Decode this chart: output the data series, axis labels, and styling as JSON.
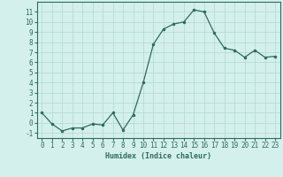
{
  "x": [
    0,
    1,
    2,
    3,
    4,
    5,
    6,
    7,
    8,
    9,
    10,
    11,
    12,
    13,
    14,
    15,
    16,
    17,
    18,
    19,
    20,
    21,
    22,
    23
  ],
  "y": [
    1,
    -0.1,
    -0.8,
    -0.5,
    -0.5,
    -0.1,
    -0.2,
    1.0,
    -0.7,
    0.8,
    4.0,
    7.8,
    9.3,
    9.8,
    10.0,
    11.2,
    11.0,
    8.9,
    7.4,
    7.2,
    6.5,
    7.2,
    6.5,
    6.6
  ],
  "line_color": "#2e6b5e",
  "marker": "o",
  "markersize": 1.5,
  "linewidth": 0.9,
  "xlabel": "Humidex (Indice chaleur)",
  "xlim": [
    -0.5,
    23.5
  ],
  "ylim": [
    -1.5,
    12
  ],
  "yticks": [
    -1,
    0,
    1,
    2,
    3,
    4,
    5,
    6,
    7,
    8,
    9,
    10,
    11
  ],
  "xticks": [
    0,
    1,
    2,
    3,
    4,
    5,
    6,
    7,
    8,
    9,
    10,
    11,
    12,
    13,
    14,
    15,
    16,
    17,
    18,
    19,
    20,
    21,
    22,
    23
  ],
  "bg_color": "#d4f0ec",
  "grid_color": "#b0d8d0",
  "xlabel_fontsize": 6.0,
  "tick_fontsize": 5.5
}
